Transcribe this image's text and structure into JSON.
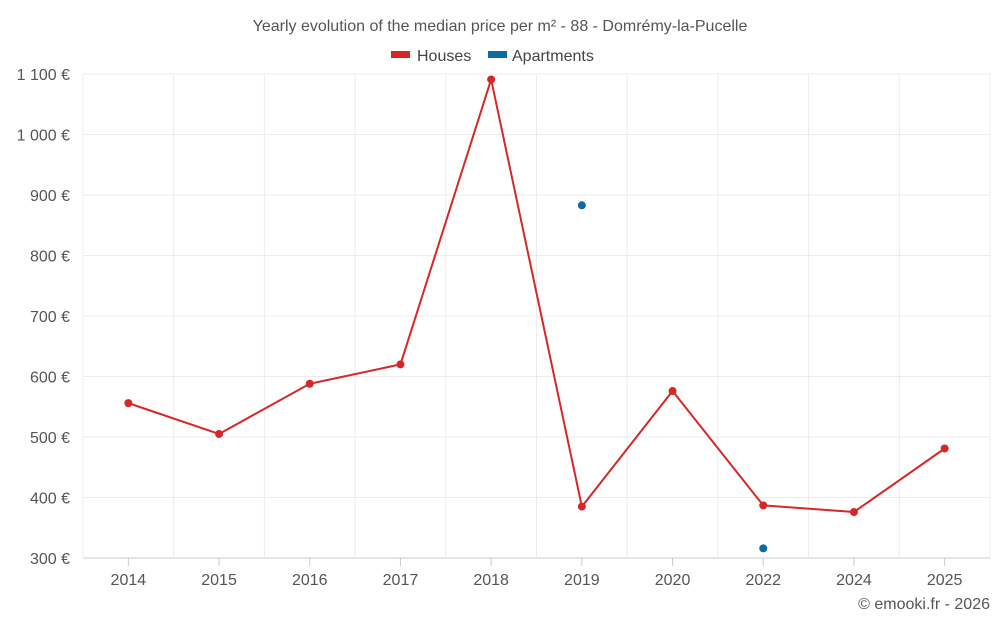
{
  "chart_data": {
    "type": "line",
    "title": "Yearly evolution of the median price per m² - 88 - Domrémy-la-Pucelle",
    "categories": [
      "2014",
      "2015",
      "2016",
      "2017",
      "2018",
      "2019",
      "2020",
      "2022",
      "2024",
      "2025"
    ],
    "series": [
      {
        "name": "Houses",
        "color": "#d62728",
        "values": [
          556,
          505,
          588,
          620,
          1091,
          385,
          576,
          387,
          376,
          481
        ]
      },
      {
        "name": "Apartments",
        "color": "#0d6aa3",
        "values": [
          null,
          null,
          null,
          null,
          null,
          883,
          null,
          316,
          null,
          null
        ]
      }
    ],
    "yticks": [
      "300 €",
      "400 €",
      "500 €",
      "600 €",
      "700 €",
      "800 €",
      "900 €",
      "1 000 €",
      "1 100 €"
    ],
    "ylim": [
      300,
      1100
    ],
    "xlabel": "",
    "ylabel": "",
    "grid": true,
    "legend_position": "top-center"
  },
  "credit": "© emooki.fr - 2026"
}
